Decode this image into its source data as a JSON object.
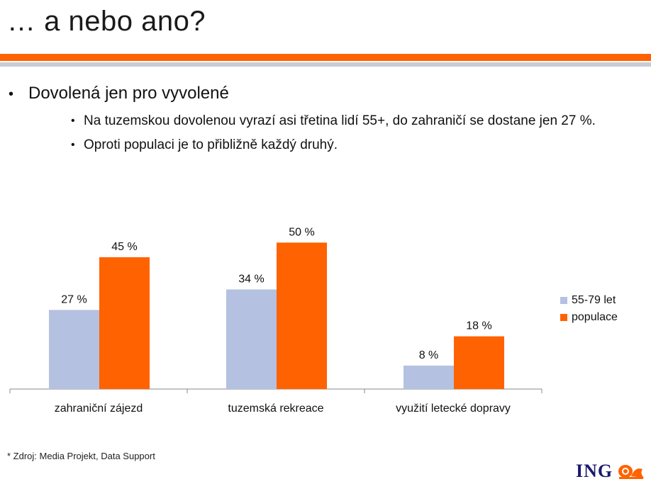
{
  "slide": {
    "title": "… a nebo ano?",
    "bullet_main": "Dovolená jen pro vyvolené",
    "sub_bullets": [
      "Na tuzemskou dovolenou vyrazí asi třetina lidí 55+, do zahraničí se dostane jen 27 %.",
      "Oproti populaci je to přibližně každý druhý."
    ],
    "footnote": "* Zdroj: Media Projekt, Data Support",
    "logo_text": "ING",
    "logo_icon": "lion-icon"
  },
  "colors": {
    "series_55_79": "#b4c1e0",
    "series_populace": "#ff6200",
    "accent": "#ff6200",
    "band_gray": "#c8cbd6",
    "logo_blue": "#1a1a6e"
  },
  "chart_data": {
    "type": "bar",
    "categories": [
      "zahraniční zájezd",
      "tuzemská rekreace",
      "využití letecké dopravy"
    ],
    "series": [
      {
        "name": "55-79 let",
        "values": [
          27,
          34,
          8
        ],
        "labels": [
          "27 %",
          "34 %",
          "8 %"
        ]
      },
      {
        "name": "populace",
        "values": [
          45,
          50,
          18
        ],
        "labels": [
          "45 %",
          "50 %",
          "18 %"
        ]
      }
    ],
    "ylim": [
      0,
      60
    ],
    "legend_position": "right",
    "grid": false
  }
}
